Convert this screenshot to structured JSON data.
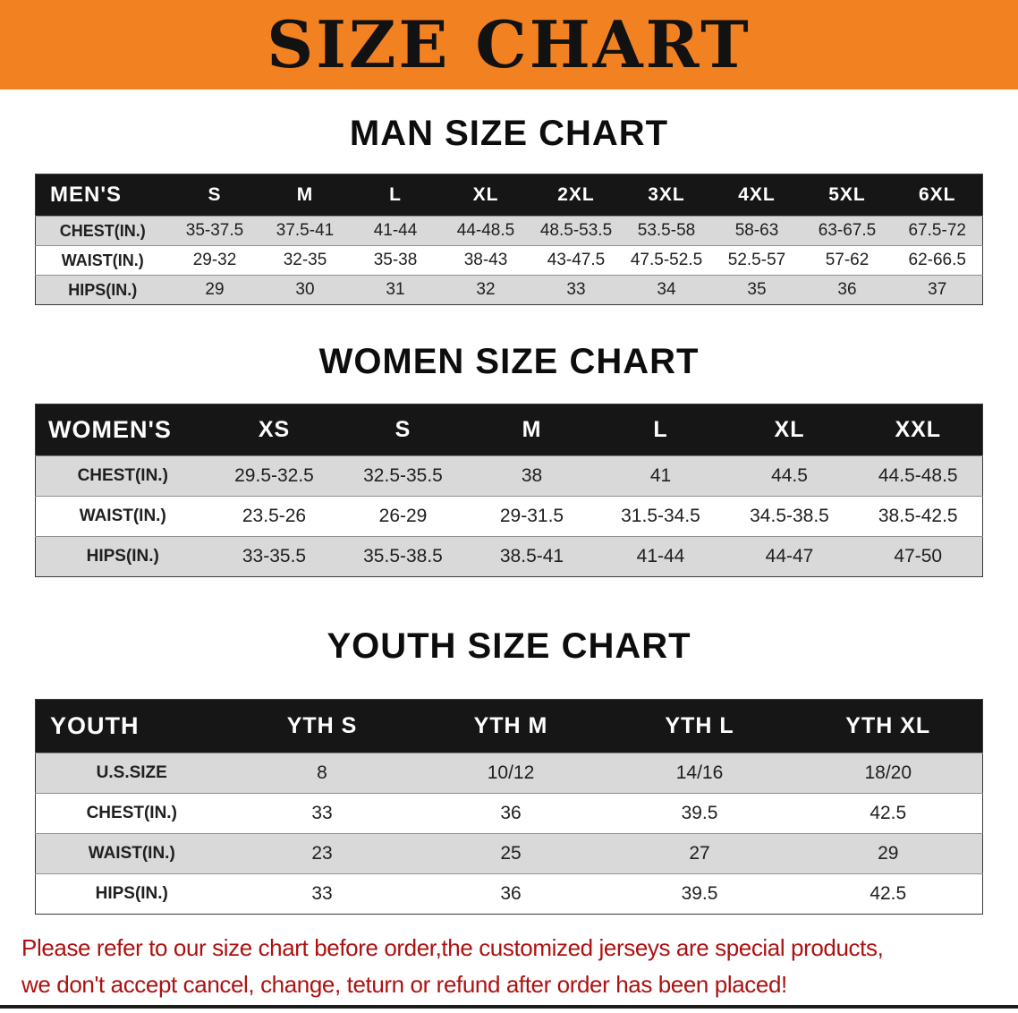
{
  "banner": {
    "title": "SIZE CHART"
  },
  "colors": {
    "banner_bg": "#f28122",
    "table_header_bg": "#161616",
    "stripe": "#d9d9d9",
    "disclaimer": "#ad1111"
  },
  "sections": [
    {
      "heading": "MAN SIZE CHART",
      "table": {
        "header": [
          "MEN'S",
          "S",
          "M",
          "L",
          "XL",
          "2XL",
          "3XL",
          "4XL",
          "5XL",
          "6XL"
        ],
        "rows": [
          [
            "CHEST(IN.)",
            "35-37.5",
            "37.5-41",
            "41-44",
            "44-48.5",
            "48.5-53.5",
            "53.5-58",
            "58-63",
            "63-67.5",
            "67.5-72"
          ],
          [
            "WAIST(IN.)",
            "29-32",
            "32-35",
            "35-38",
            "38-43",
            "43-47.5",
            "47.5-52.5",
            "52.5-57",
            "57-62",
            "62-66.5"
          ],
          [
            "HIPS(IN.)",
            "29",
            "30",
            "31",
            "32",
            "33",
            "34",
            "35",
            "36",
            "37"
          ]
        ]
      }
    },
    {
      "heading": "WOMEN SIZE CHART",
      "table": {
        "header": [
          "WOMEN'S",
          "XS",
          "S",
          "M",
          "L",
          "XL",
          "XXL"
        ],
        "rows": [
          [
            "CHEST(IN.)",
            "29.5-32.5",
            "32.5-35.5",
            "38",
            "41",
            "44.5",
            "44.5-48.5"
          ],
          [
            "WAIST(IN.)",
            "23.5-26",
            "26-29",
            "29-31.5",
            "31.5-34.5",
            "34.5-38.5",
            "38.5-42.5"
          ],
          [
            "HIPS(IN.)",
            "33-35.5",
            "35.5-38.5",
            "38.5-41",
            "41-44",
            "44-47",
            "47-50"
          ]
        ]
      }
    },
    {
      "heading": "YOUTH SIZE CHART",
      "table": {
        "header": [
          "YOUTH",
          "YTH S",
          "YTH M",
          "YTH L",
          "YTH XL"
        ],
        "rows": [
          [
            "U.S.SIZE",
            "8",
            "10/12",
            "14/16",
            "18/20"
          ],
          [
            "CHEST(IN.)",
            "33",
            "36",
            "39.5",
            "42.5"
          ],
          [
            "WAIST(IN.)",
            "23",
            "25",
            "27",
            "29"
          ],
          [
            "HIPS(IN.)",
            "33",
            "36",
            "39.5",
            "42.5"
          ]
        ]
      }
    }
  ],
  "disclaimer": {
    "line1": "Please refer to our size chart before order,the customized jerseys are special products,",
    "line2": "we don't accept cancel, change, teturn or refund after order has been placed!"
  }
}
